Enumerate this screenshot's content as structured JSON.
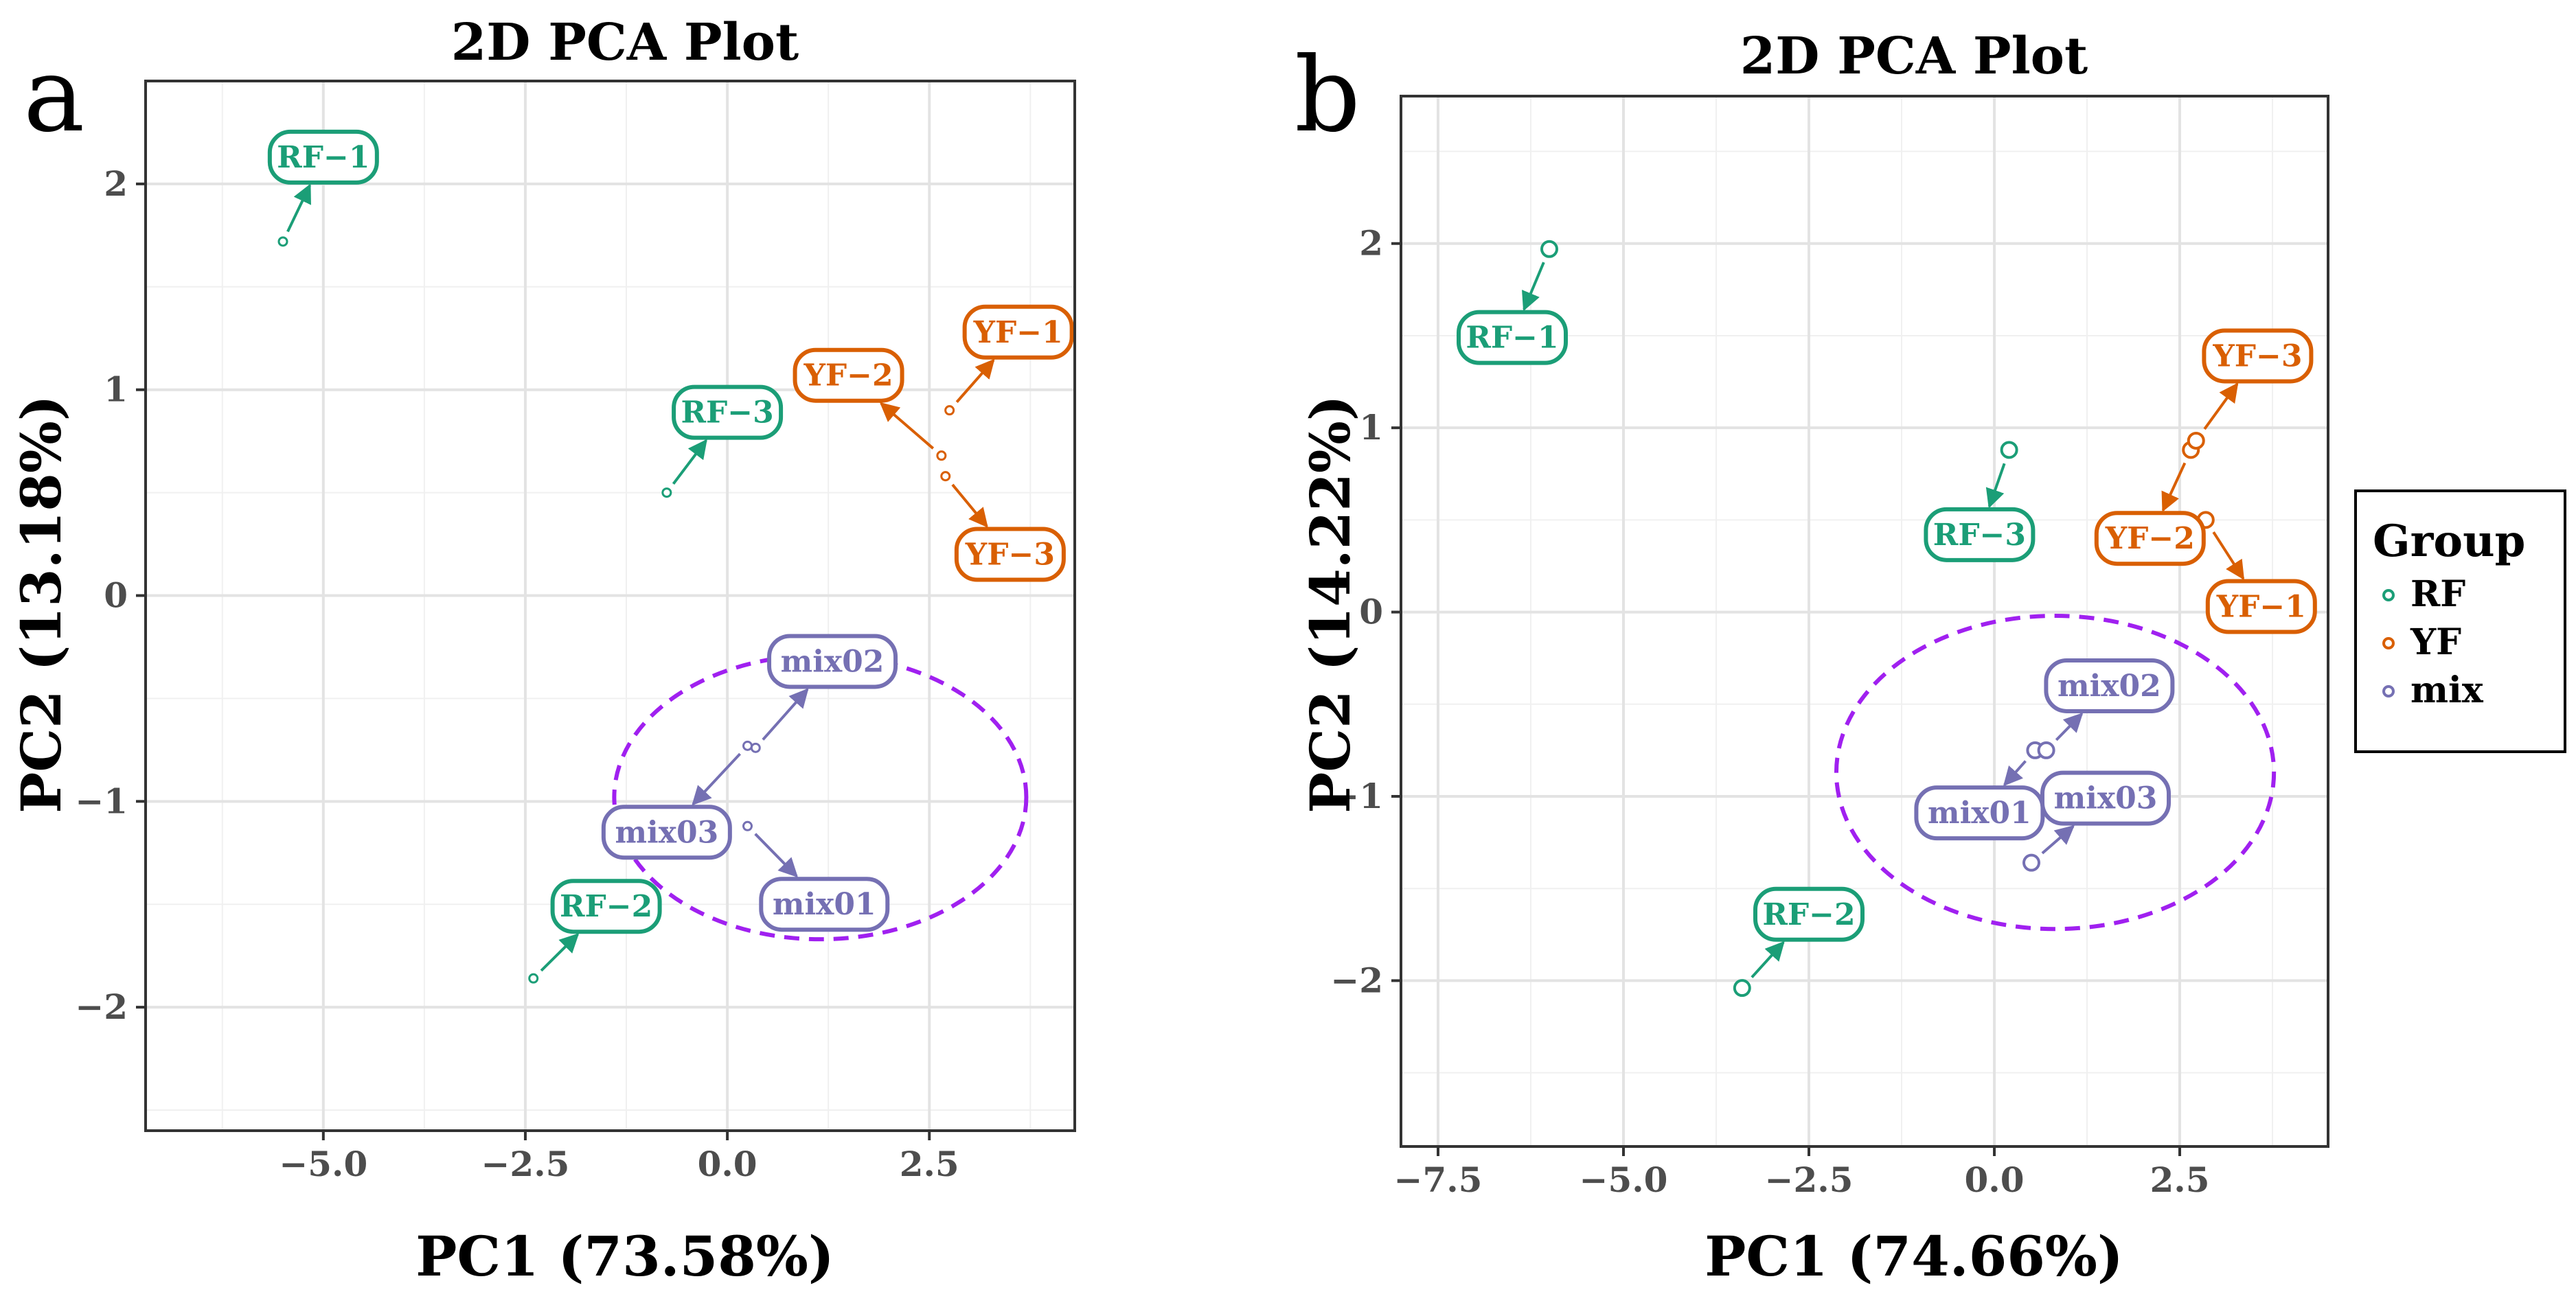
{
  "colors": {
    "RF": "#1b9e77",
    "YF": "#d95f02",
    "mix": "#7570b3",
    "ellipse": "#a020f0"
  },
  "legend": {
    "title": "Group",
    "entries": [
      {
        "group": "RF",
        "label": "RF"
      },
      {
        "group": "YF",
        "label": "YF"
      },
      {
        "group": "mix",
        "label": "mix"
      }
    ]
  },
  "chart_data": [
    {
      "type": "scatter",
      "panel": "a",
      "title": "2D PCA Plot",
      "xlabel": "PC1 (73.58%)",
      "ylabel": "PC2 (13.18%)",
      "xlim": [
        -7.2,
        4.3
      ],
      "ylim": [
        -2.6,
        2.5
      ],
      "xticks": [
        -5.0,
        -2.5,
        0.0,
        2.5
      ],
      "xtick_labels": [
        "-5.0",
        "-2.5",
        "0.0",
        "2.5"
      ],
      "yticks": [
        -2,
        -1,
        0,
        1,
        2
      ],
      "ytick_labels": [
        "-2",
        "-1",
        "0",
        "1",
        "2"
      ],
      "grid": true,
      "points": [
        {
          "name": "RF-1",
          "group": "RF",
          "x": -5.5,
          "y": 1.72,
          "label_x": -5.0,
          "label_y": 2.13
        },
        {
          "name": "RF-2",
          "group": "RF",
          "x": -2.4,
          "y": -1.86,
          "label_x": -1.5,
          "label_y": -1.51
        },
        {
          "name": "RF-3",
          "group": "RF",
          "x": -0.75,
          "y": 0.5,
          "label_x": 0.0,
          "label_y": 0.89
        },
        {
          "name": "YF-1",
          "group": "YF",
          "x": 2.75,
          "y": 0.9,
          "label_x": 3.6,
          "label_y": 1.28
        },
        {
          "name": "YF-2",
          "group": "YF",
          "x": 2.65,
          "y": 0.68,
          "label_x": 1.5,
          "label_y": 1.07
        },
        {
          "name": "YF-3",
          "group": "YF",
          "x": 2.7,
          "y": 0.58,
          "label_x": 3.5,
          "label_y": 0.2
        },
        {
          "name": "mix01",
          "group": "mix",
          "x": 0.25,
          "y": -1.12,
          "label_x": 1.2,
          "label_y": -1.5
        },
        {
          "name": "mix02",
          "group": "mix",
          "x": 0.35,
          "y": -0.74,
          "label_x": 1.3,
          "label_y": -0.32
        },
        {
          "name": "mix03",
          "group": "mix",
          "x": 0.25,
          "y": -0.73,
          "label_x": -0.75,
          "label_y": -1.15
        }
      ],
      "ellipse": {
        "cx": 1.15,
        "cy": -0.98,
        "rx": 2.55,
        "ry": 0.69
      }
    },
    {
      "type": "scatter",
      "panel": "b",
      "title": "2D PCA Plot",
      "xlabel": "PC1 (74.66%)",
      "ylabel": "PC2 (14.22%)",
      "xlim": [
        -8.0,
        4.5
      ],
      "ylim": [
        -2.9,
        2.8
      ],
      "xticks": [
        -7.5,
        -5.0,
        -2.5,
        0.0,
        2.5
      ],
      "xtick_labels": [
        "-7.5",
        "-5.0",
        "-2.5",
        "0.0",
        "2.5"
      ],
      "yticks": [
        -2,
        -1,
        0,
        1,
        2
      ],
      "ytick_labels": [
        "-2",
        "-1",
        "0",
        "1",
        "2"
      ],
      "grid": true,
      "points": [
        {
          "name": "RF-1",
          "group": "RF",
          "x": -6.0,
          "y": 1.97,
          "label_x": -6.5,
          "label_y": 1.49
        },
        {
          "name": "RF-2",
          "group": "RF",
          "x": -3.4,
          "y": -2.04,
          "label_x": -2.5,
          "label_y": -1.64
        },
        {
          "name": "RF-3",
          "group": "RF",
          "x": 0.2,
          "y": 0.88,
          "label_x": -0.2,
          "label_y": 0.42
        },
        {
          "name": "YF-1",
          "group": "YF",
          "x": 2.85,
          "y": 0.5,
          "label_x": 3.6,
          "label_y": 0.03
        },
        {
          "name": "YF-2",
          "group": "YF",
          "x": 2.65,
          "y": 0.88,
          "label_x": 2.1,
          "label_y": 0.4
        },
        {
          "name": "YF-3",
          "group": "YF",
          "x": 2.72,
          "y": 0.93,
          "label_x": 3.55,
          "label_y": 1.39
        },
        {
          "name": "mix01",
          "group": "mix",
          "x": 0.55,
          "y": -0.75,
          "label_x": -0.2,
          "label_y": -1.09
        },
        {
          "name": "mix02",
          "group": "mix",
          "x": 0.7,
          "y": -0.75,
          "label_x": 1.55,
          "label_y": -0.4
        },
        {
          "name": "mix03",
          "group": "mix",
          "x": 0.5,
          "y": -1.36,
          "label_x": 1.5,
          "label_y": -1.01
        }
      ],
      "ellipse": {
        "cx": 0.82,
        "cy": -0.87,
        "rx": 2.95,
        "ry": 0.85
      }
    }
  ]
}
